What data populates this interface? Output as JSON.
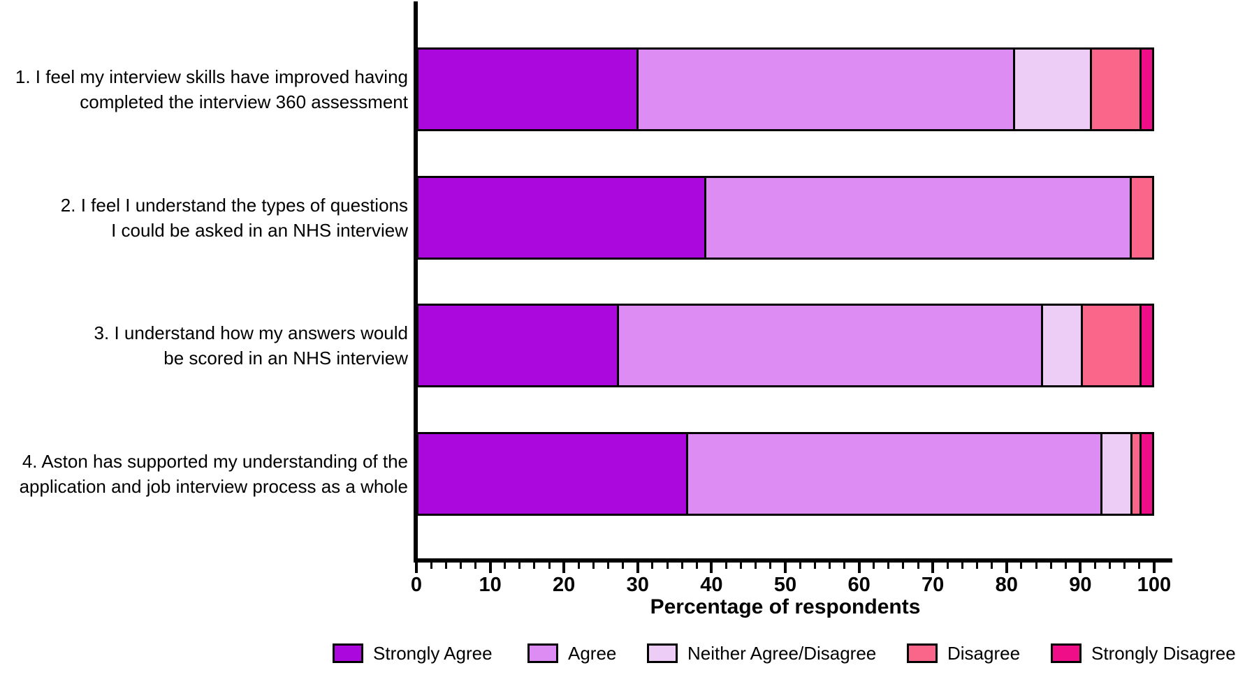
{
  "figure": {
    "background": "#ffffff"
  },
  "chart_data": {
    "type": "bar",
    "stacked": true,
    "orientation": "horizontal",
    "title": "",
    "xlabel": "Percentage of respondents",
    "xlim": [
      0,
      100
    ],
    "xticks": [
      0,
      10,
      20,
      30,
      40,
      50,
      60,
      70,
      80,
      90,
      100
    ],
    "minor_tick_step": 2,
    "grid": false,
    "legend_position": "bottom",
    "bar_border_color": "#000000",
    "categories": [
      {
        "lines": [
          "1. I feel my interview skills have improved having",
          "completed the interview 360 assessment"
        ]
      },
      {
        "lines": [
          "2. I feel I understand the types of questions",
          "I could be asked in an NHS interview"
        ]
      },
      {
        "lines": [
          "3. I understand how my answers would",
          "be scored in an NHS interview"
        ]
      },
      {
        "lines": [
          "4. Aston has supported my understanding of the",
          "application and job interview process as a whole"
        ]
      }
    ],
    "series": [
      {
        "name": "Strongly Agree",
        "color": "#AA08DC",
        "values": [
          30.0,
          39.2,
          27.3,
          36.8
        ]
      },
      {
        "name": "Agree",
        "color": "#DC8CF2",
        "values": [
          51.3,
          58.0,
          57.8,
          56.4
        ]
      },
      {
        "name": "Neither Agree/Disagree",
        "color": "#EDCDF6",
        "values": [
          10.5,
          0.0,
          5.5,
          4.1
        ]
      },
      {
        "name": "Disagree",
        "color": "#FA6689",
        "values": [
          6.8,
          2.8,
          8.0,
          1.3
        ]
      },
      {
        "name": "Strongly Disagree",
        "color": "#F00E88",
        "values": [
          1.4,
          0.0,
          1.4,
          1.4
        ]
      }
    ]
  }
}
